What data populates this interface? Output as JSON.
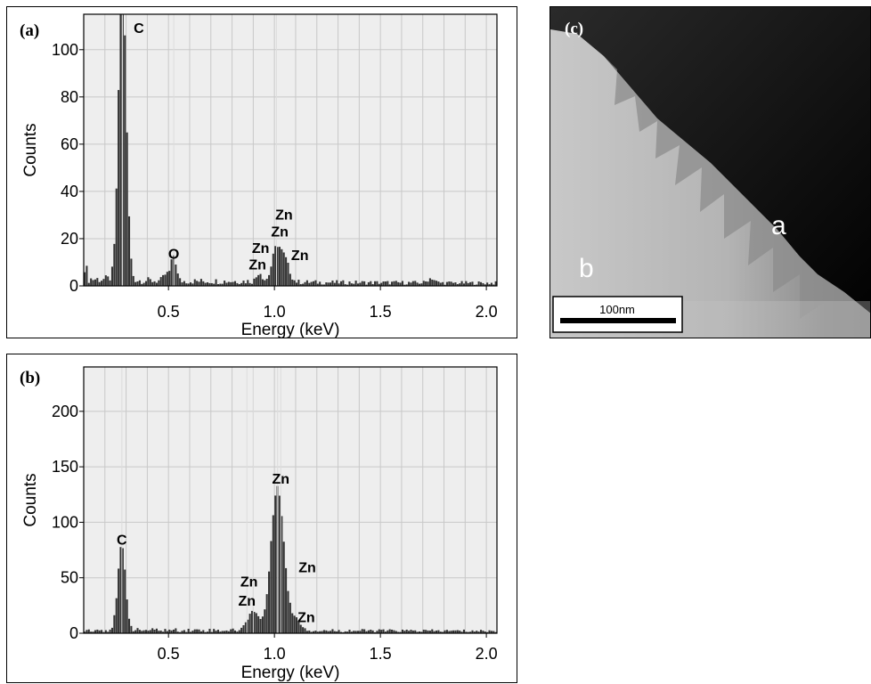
{
  "colors": {
    "plot_bg": "#eeeeee",
    "grid": "#c8c8c8",
    "bars": "#333333",
    "peak_line": "#dddddd"
  },
  "panels": {
    "a": {
      "label": "(a)"
    },
    "b": {
      "label": "(b)"
    },
    "c": {
      "label": "(c)",
      "region_a": "a",
      "region_b": "b",
      "scale_bar": "100nm"
    }
  },
  "chart_data": [
    {
      "panel": "a",
      "type": "bar",
      "xlabel": "Energy (keV)",
      "ylabel": "Counts",
      "xlim": [
        0.1,
        2.05
      ],
      "ylim": [
        0,
        115
      ],
      "xticks": [
        0.5,
        1.0,
        1.5,
        2.0
      ],
      "xtick_labels": [
        "0.5",
        "1.0",
        "1.5",
        "2.0"
      ],
      "yticks": [
        0,
        20,
        40,
        60,
        80,
        100
      ],
      "ytick_labels": [
        "0",
        "20",
        "40",
        "60",
        "80",
        "100"
      ],
      "grid": true,
      "bin_width": 0.01,
      "baseline": 1.5,
      "background": [
        [
          0.1,
          25
        ],
        [
          0.11,
          8
        ],
        [
          0.12,
          3
        ],
        [
          0.5,
          2
        ],
        [
          0.9,
          2
        ],
        [
          1.2,
          1.5
        ],
        [
          2.05,
          1.2
        ]
      ],
      "peaks": [
        {
          "center": 0.283,
          "height": 130,
          "width": 0.018
        },
        {
          "center": 0.525,
          "height": 11,
          "width": 0.012
        },
        {
          "center": 0.49,
          "height": 3,
          "width": 0.012
        },
        {
          "center": 0.93,
          "height": 4,
          "width": 0.012
        },
        {
          "center": 1.01,
          "height": 14,
          "width": 0.02
        },
        {
          "center": 1.05,
          "height": 9,
          "width": 0.02
        },
        {
          "center": 1.74,
          "height": 2,
          "width": 0.015
        }
      ],
      "peak_lines": [
        0.283,
        0.525,
        1.01
      ],
      "labels": [
        {
          "text": "C",
          "x": 0.36,
          "y": 107
        },
        {
          "text": "O",
          "x": 0.525,
          "y": 11.5
        },
        {
          "text": "Zn",
          "x": 1.045,
          "y": 28
        },
        {
          "text": "Zn",
          "x": 1.025,
          "y": 21
        },
        {
          "text": "Zn",
          "x": 0.935,
          "y": 14
        },
        {
          "text": "Zn",
          "x": 0.92,
          "y": 7
        },
        {
          "text": "Zn",
          "x": 1.12,
          "y": 11
        }
      ]
    },
    {
      "panel": "b",
      "type": "bar",
      "xlabel": "Energy (keV)",
      "ylabel": "Counts",
      "xlim": [
        0.1,
        2.05
      ],
      "ylim": [
        0,
        240
      ],
      "xticks": [
        0.5,
        1.0,
        1.5,
        2.0
      ],
      "xtick_labels": [
        "0.5",
        "1.0",
        "1.5",
        "2.0"
      ],
      "yticks": [
        0,
        50,
        100,
        150,
        200
      ],
      "ytick_labels": [
        "0",
        "50",
        "100",
        "150",
        "200"
      ],
      "grid": true,
      "bin_width": 0.01,
      "baseline": 3,
      "background": [
        [
          0.1,
          3
        ],
        [
          2.05,
          2
        ]
      ],
      "peaks": [
        {
          "center": 0.28,
          "height": 76,
          "width": 0.018
        },
        {
          "center": 1.015,
          "height": 130,
          "width": 0.03
        },
        {
          "center": 0.9,
          "height": 18,
          "width": 0.025
        },
        {
          "center": 1.1,
          "height": 10,
          "width": 0.025
        }
      ],
      "peak_lines": [
        0.28,
        0.87,
        0.9,
        1.015,
        1.03
      ],
      "labels": [
        {
          "text": "Zn",
          "x": 1.03,
          "y": 135
        },
        {
          "text": "C",
          "x": 0.28,
          "y": 80
        },
        {
          "text": "Zn",
          "x": 1.155,
          "y": 55
        },
        {
          "text": "Zn",
          "x": 0.88,
          "y": 42
        },
        {
          "text": "Zn",
          "x": 0.87,
          "y": 25
        },
        {
          "text": "Zn",
          "x": 1.15,
          "y": 10
        }
      ]
    }
  ]
}
